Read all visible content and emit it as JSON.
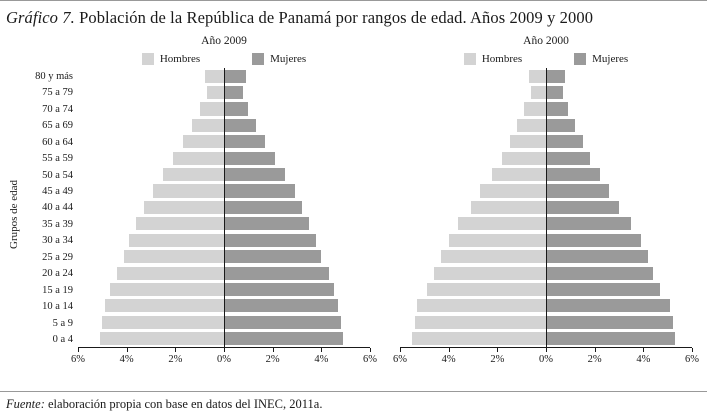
{
  "page": {
    "title_prefix": "Gráfico 7.",
    "title_rest": " Población de la República de Panamá por rangos de edad. Años 2009 y 2000",
    "source_prefix": "Fuente:",
    "source_rest": " elaboración propia con base en datos del INEC, 2011a."
  },
  "ylabel": "Grupos de edad",
  "colors": {
    "hombres": "#d3d3d3",
    "mujeres": "#9a9a9a",
    "axis": "#1a1a1a"
  },
  "x_ticks": [
    "6%",
    "4%",
    "2%",
    "0%",
    "2%",
    "4%",
    "6%"
  ],
  "chart_data": [
    {
      "type": "bar",
      "subtype": "population-pyramid",
      "title": "Año 2009",
      "categories": [
        "80 y más",
        "75 a 79",
        "70 a 74",
        "65 a 69",
        "60 a 64",
        "55 a 59",
        "50 a 54",
        "45 a 49",
        "40 a 44",
        "35 a 39",
        "30 a 34",
        "25 a 29",
        "20 a 24",
        "15 a 19",
        "10 a 14",
        "5 a 9",
        "0 a 4"
      ],
      "series": [
        {
          "name": "Hombres",
          "side": "left",
          "values": [
            0.8,
            0.7,
            1.0,
            1.3,
            1.7,
            2.1,
            2.5,
            2.9,
            3.3,
            3.6,
            3.9,
            4.1,
            4.4,
            4.7,
            4.9,
            5.0,
            5.1
          ]
        },
        {
          "name": "Mujeres",
          "side": "right",
          "values": [
            0.9,
            0.8,
            1.0,
            1.3,
            1.7,
            2.1,
            2.5,
            2.9,
            3.2,
            3.5,
            3.8,
            4.0,
            4.3,
            4.5,
            4.7,
            4.8,
            4.9
          ]
        }
      ],
      "x_max_percent": 6,
      "xlabel": "",
      "legend_position": "top",
      "grid": false
    },
    {
      "type": "bar",
      "subtype": "population-pyramid",
      "title": "Año 2000",
      "categories": [
        "80 y más",
        "75 a 79",
        "70 a 74",
        "65 a 69",
        "60 a 64",
        "55 a 59",
        "50 a 54",
        "45 a 49",
        "40 a 44",
        "35 a 39",
        "30 a 34",
        "25 a 29",
        "20 a 24",
        "15 a 19",
        "10 a 14",
        "5 a 9",
        "0 a 4"
      ],
      "series": [
        {
          "name": "Hombres",
          "side": "left",
          "values": [
            0.7,
            0.6,
            0.9,
            1.2,
            1.5,
            1.8,
            2.2,
            2.7,
            3.1,
            3.6,
            4.0,
            4.3,
            4.6,
            4.9,
            5.3,
            5.4,
            5.5
          ]
        },
        {
          "name": "Mujeres",
          "side": "right",
          "values": [
            0.8,
            0.7,
            0.9,
            1.2,
            1.5,
            1.8,
            2.2,
            2.6,
            3.0,
            3.5,
            3.9,
            4.2,
            4.4,
            4.7,
            5.1,
            5.2,
            5.3
          ]
        }
      ],
      "x_max_percent": 6,
      "xlabel": "",
      "legend_position": "top",
      "grid": false
    }
  ]
}
